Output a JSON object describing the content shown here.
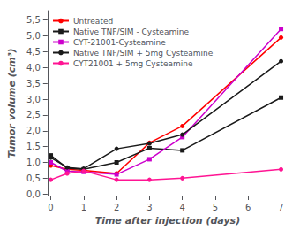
{
  "chart_data": {
    "type": "line",
    "xlabel": "Time after injection (days)",
    "ylabel": "Tumor volume (cm³)",
    "x": [
      0,
      0.5,
      1,
      2,
      3,
      4,
      7
    ],
    "series": [
      {
        "name": "Untreated",
        "color": "#ff0000",
        "marker": "circle",
        "values": [
          0.9,
          0.78,
          0.75,
          0.65,
          1.62,
          2.15,
          4.95
        ]
      },
      {
        "name": "Native TNF/SIM - Cysteamine",
        "color": "#1a1a1a",
        "marker": "square",
        "values": [
          1.22,
          0.82,
          0.78,
          1.0,
          1.45,
          1.38,
          3.05
        ]
      },
      {
        "name": "CYT-21001-Cysteamine",
        "color": "#cc00cc",
        "marker": "square",
        "values": [
          1.0,
          0.72,
          0.7,
          0.62,
          1.1,
          1.8,
          5.22
        ]
      },
      {
        "name": "Native TNF/SIM + 5mg Cysteamine",
        "color": "#1a1a1a",
        "marker": "circle",
        "values": [
          1.15,
          0.84,
          0.8,
          1.43,
          1.6,
          1.88,
          4.2
        ]
      },
      {
        "name": "CYT21001 + 5mg Cysteamine",
        "color": "#ff1493",
        "marker": "circle",
        "values": [
          0.45,
          0.65,
          0.73,
          0.45,
          0.45,
          0.5,
          0.78
        ]
      }
    ],
    "xlim": [
      -0.1,
      7.2
    ],
    "xticks": [
      0,
      1,
      2,
      3,
      4,
      5,
      6,
      7
    ],
    "ylim": [
      -0.05,
      5.8
    ],
    "yticks": [
      {
        "value": 0.0,
        "label": "0,0"
      },
      {
        "value": 0.5,
        "label": "0,5"
      },
      {
        "value": 1.0,
        "label": "1,0"
      },
      {
        "value": 1.5,
        "label": "1,5"
      },
      {
        "value": 2.0,
        "label": "2,0"
      },
      {
        "value": 2.5,
        "label": "2,5"
      },
      {
        "value": 3.0,
        "label": "3,0"
      },
      {
        "value": 3.5,
        "label": "3,5"
      },
      {
        "value": 4.0,
        "label": "4,0"
      },
      {
        "value": 4.5,
        "label": "4,5"
      },
      {
        "value": 5.0,
        "label": "5,0"
      },
      {
        "value": 5.5,
        "label": "5,5"
      }
    ],
    "legend": "upper left",
    "grid": false
  }
}
